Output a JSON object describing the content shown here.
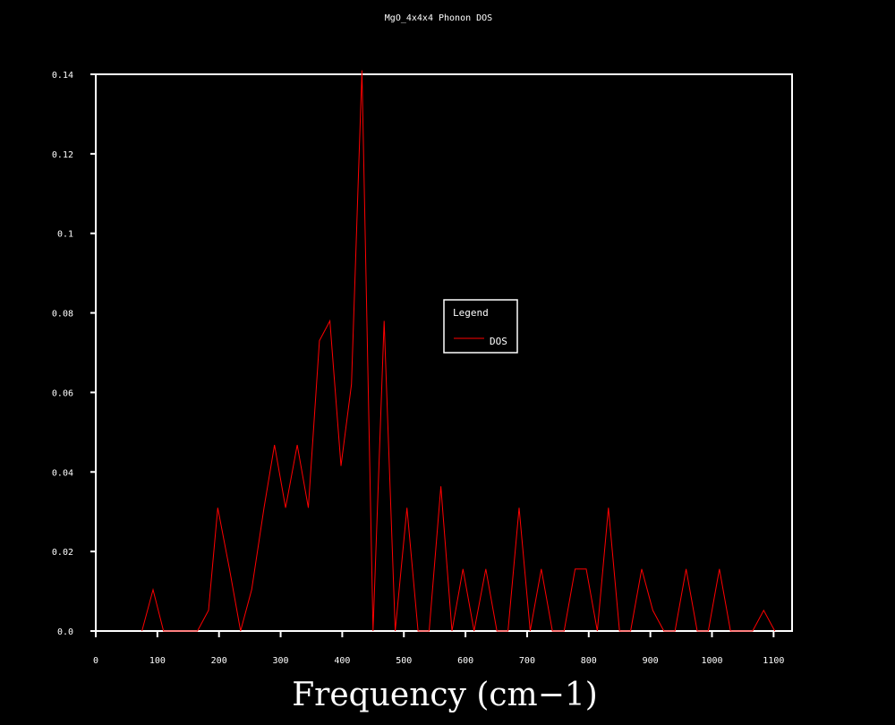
{
  "chart_data": {
    "type": "line",
    "title": "MgO_4x4x4 Phonon DOS",
    "xlabel": "Frequency (cm−1)",
    "ylabel": "",
    "xlim": [
      0,
      1130
    ],
    "ylim": [
      0,
      0.14
    ],
    "xticks": [
      0,
      100,
      200,
      300,
      400,
      500,
      600,
      700,
      800,
      900,
      1000,
      1100
    ],
    "yticks": [
      0.0,
      0.02,
      0.04,
      0.06,
      0.08,
      0.1,
      0.12,
      0.14
    ],
    "xtick_labels": [
      "0",
      "100",
      "200",
      "300",
      "400",
      "500",
      "600",
      "700",
      "800",
      "900",
      "1000",
      "1100"
    ],
    "ytick_labels": [
      "0.0",
      "0.02",
      "0.04",
      "0.06",
      "0.08",
      "0.1",
      "0.12",
      "0.14"
    ],
    "grid": false,
    "legend": {
      "title": "Legend",
      "position": "center"
    },
    "series": [
      {
        "name": "DOS",
        "color": "#ff0000",
        "x": [
          75,
          93,
          110,
          165,
          183,
          198,
          217,
          235,
          253,
          273,
          290,
          308,
          327,
          345,
          363,
          380,
          398,
          415,
          432,
          450,
          468,
          486,
          505,
          523,
          541,
          560,
          578,
          596,
          614,
          633,
          651,
          669,
          687,
          705,
          723,
          741,
          760,
          778,
          796,
          814,
          832,
          850,
          868,
          886,
          904,
          922,
          940,
          958,
          976,
          994,
          1012,
          1030,
          1048,
          1066,
          1084,
          1102
        ],
        "y": [
          0,
          0.0104,
          0,
          0,
          0.0052,
          0.031,
          0.0156,
          0,
          0.0104,
          0.031,
          0.0468,
          0.031,
          0.0468,
          0.031,
          0.073,
          0.078,
          0.0415,
          0.062,
          0.141,
          0,
          0.078,
          0,
          0.031,
          0,
          0,
          0.0364,
          0,
          0.0156,
          0,
          0.0156,
          0,
          0,
          0.031,
          0,
          0.0156,
          0,
          0,
          0.0156,
          0.0156,
          0,
          0.031,
          0,
          0,
          0.0156,
          0.0052,
          0,
          0,
          0.0156,
          0,
          0,
          0.0156,
          0,
          0,
          0,
          0.0052,
          0
        ]
      }
    ]
  }
}
